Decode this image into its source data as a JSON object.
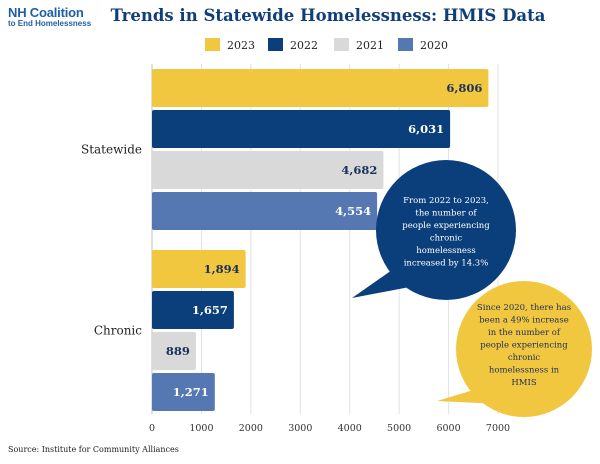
{
  "logo": {
    "line1": "NH Coalition",
    "line2": "to End Homelessness"
  },
  "title": "Trends in Statewide Homelessness: HMIS Data",
  "source": "Source: Institute for Community Alliances",
  "chart_data": {
    "type": "bar",
    "orientation": "horizontal",
    "categories": [
      "Statewide",
      "Chronic"
    ],
    "series": [
      {
        "name": "2023",
        "color": "#f2c740",
        "label_color": "#1a2f5a",
        "values": [
          6806,
          1894
        ],
        "labels": [
          "6,806",
          "1,894"
        ]
      },
      {
        "name": "2022",
        "color": "#0b3f7c",
        "label_color": "#ffffff",
        "values": [
          6031,
          1657
        ],
        "labels": [
          "6,031",
          "1,657"
        ]
      },
      {
        "name": "2021",
        "color": "#d9d9d9",
        "label_color": "#1a2f5a",
        "values": [
          4682,
          889
        ],
        "labels": [
          "4,682",
          "889"
        ]
      },
      {
        "name": "2020",
        "color": "#5578b3",
        "label_color": "#ffffff",
        "values": [
          4554,
          1271
        ],
        "labels": [
          "4,554",
          "1,271"
        ]
      }
    ],
    "xlim": [
      0,
      7000
    ],
    "xticks": [
      0,
      1000,
      2000,
      3000,
      4000,
      5000,
      6000,
      7000
    ],
    "grid": true,
    "legend_position": "top"
  },
  "annotations": [
    {
      "text": [
        "From 2022 to 2023,",
        "the number of",
        "people experiencing",
        "chronic",
        "homelessness",
        "increased by 14.3%"
      ],
      "fill": "#0b3f7c",
      "text_color": "#ffffff"
    },
    {
      "text": [
        "Since 2020, there has",
        "been a 49% increase",
        "in the number of",
        "people experiencing",
        "chronic",
        "homelessness in",
        "HMIS"
      ],
      "fill": "#f2c740",
      "text_color": "#1a2f5a"
    }
  ]
}
